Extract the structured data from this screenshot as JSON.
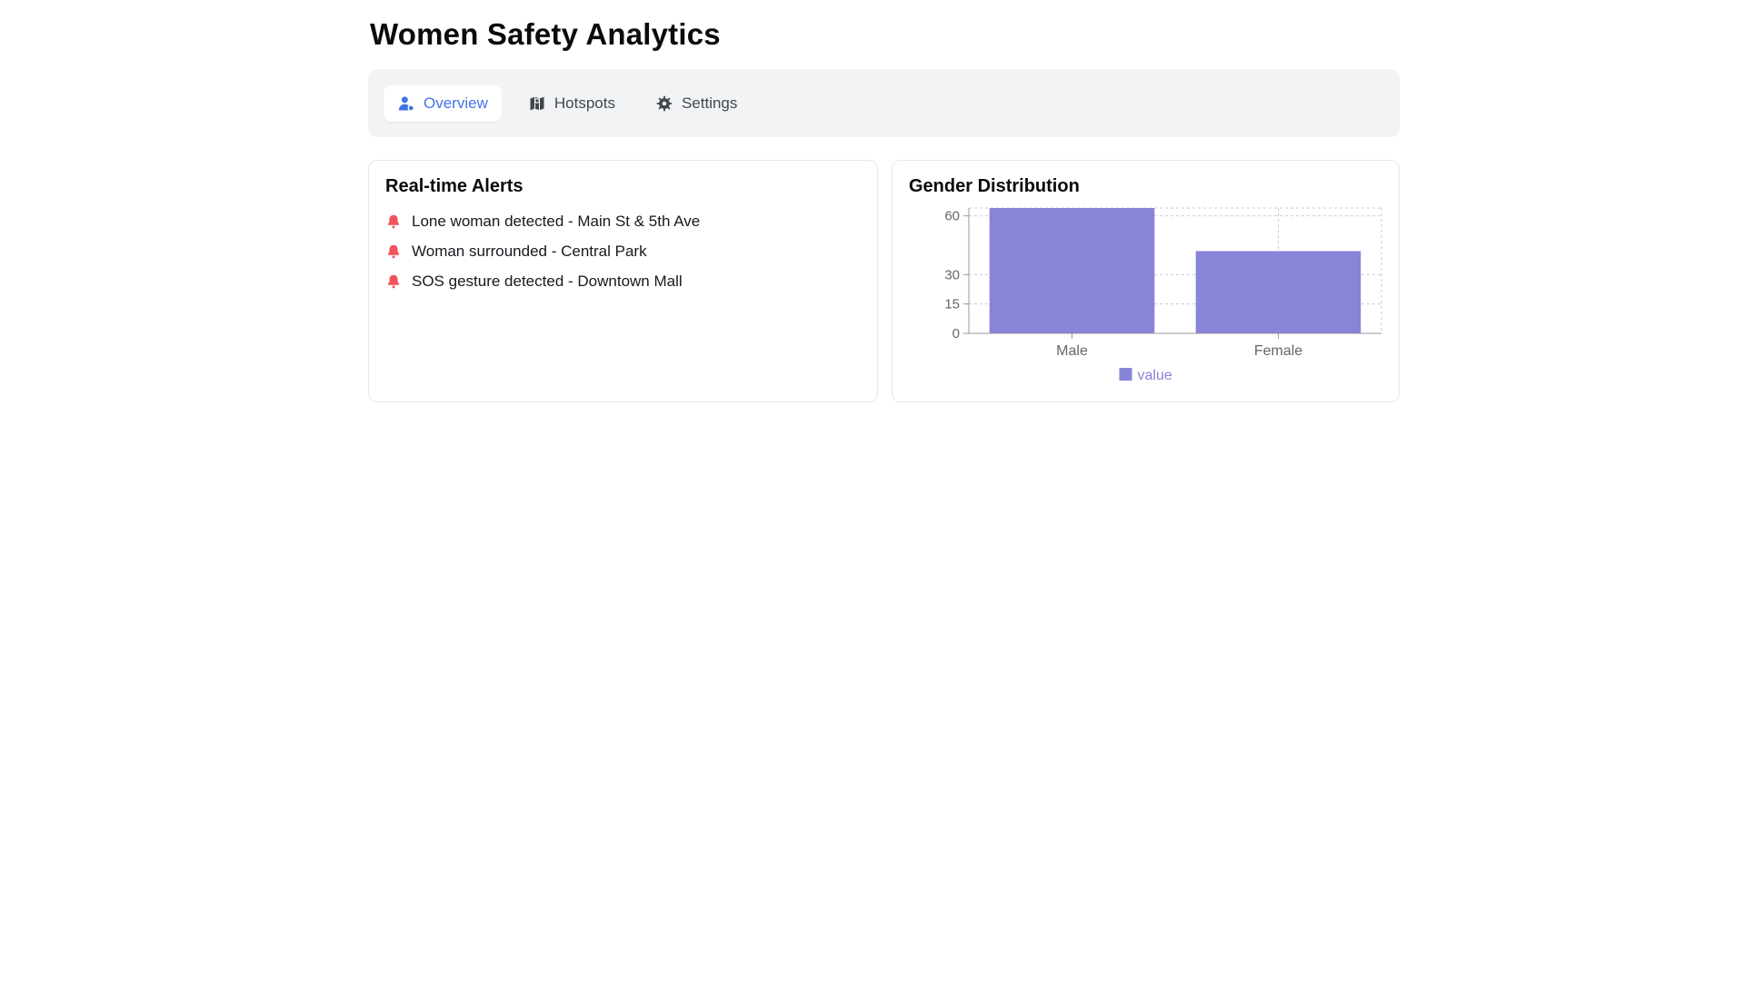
{
  "page": {
    "title": "Women Safety Analytics"
  },
  "tabs": [
    {
      "label": "Overview",
      "icon": "user-icon",
      "active": true
    },
    {
      "label": "Hotspots",
      "icon": "map-icon",
      "active": false
    },
    {
      "label": "Settings",
      "icon": "gear-icon",
      "active": false
    }
  ],
  "alerts_card": {
    "title": "Real-time Alerts",
    "items": [
      "Lone woman detected - Main St & 5th Ave",
      "Woman surrounded - Central Park",
      "SOS gesture detected - Downtown Mall"
    ]
  },
  "chart_card": {
    "title": "Gender Distribution"
  },
  "chart_data": {
    "type": "bar",
    "title": "Gender Distribution",
    "categories": [
      "Male",
      "Female"
    ],
    "series": [
      {
        "name": "value",
        "values": [
          64,
          42
        ]
      }
    ],
    "xlabel": "",
    "ylabel": "",
    "yticks": [
      0,
      15,
      30,
      60
    ],
    "ylim": [
      0,
      64
    ],
    "grid": "dotted",
    "legend_position": "bottom",
    "bar_color": "#8884d8"
  },
  "colors": {
    "accent_blue": "#4273e8",
    "alert_red": "#f0545c",
    "bar_purple": "#8884d8",
    "axis_gray": "#999999",
    "tick_text_gray": "#666666"
  }
}
